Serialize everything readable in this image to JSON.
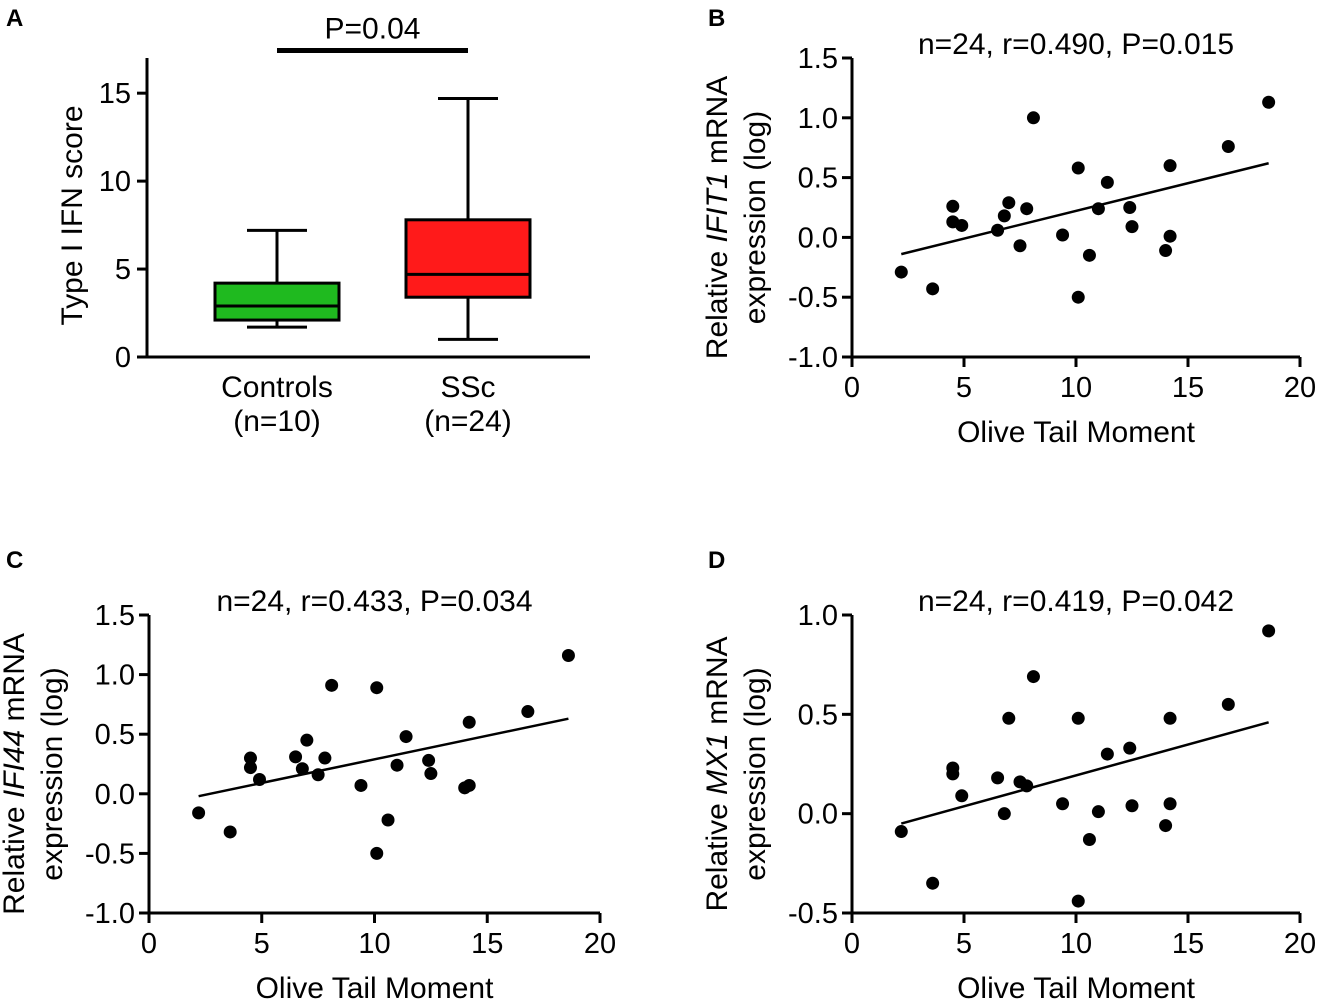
{
  "chart_data": [
    {
      "panel": "A",
      "type": "box",
      "ylabel": "Type I IFN score",
      "ylim": [
        0,
        17
      ],
      "yticks": [
        0,
        5,
        10,
        15
      ],
      "categories": [
        "Controls",
        "SSc"
      ],
      "category_sublabels": [
        "(n=10)",
        "(n=24)"
      ],
      "boxes": [
        {
          "name": "Controls",
          "min": 1.7,
          "q1": 2.1,
          "median": 2.9,
          "q3": 4.2,
          "max": 7.2,
          "color": "#1fba1f"
        },
        {
          "name": "SSc",
          "min": 1.0,
          "q1": 3.4,
          "median": 4.7,
          "q3": 7.8,
          "max": 14.7,
          "color": "#ff1a1a"
        }
      ],
      "significance": {
        "label": "P=0.04",
        "y": 17.2
      }
    },
    {
      "panel": "B",
      "type": "scatter",
      "title": "n=24, r=0.490, P=0.015",
      "xlabel": "Olive Tail Moment",
      "ylabel_prefix": "Relative ",
      "ylabel_gene": "IFIT1",
      "ylabel_suffix": " mRNA",
      "ylabel_line2": "expression (log)",
      "xlim": [
        0,
        20
      ],
      "xticks": [
        0,
        5,
        10,
        15,
        20
      ],
      "ylim": [
        -1.0,
        1.5
      ],
      "yticks": [
        "-1.0",
        "-0.5",
        "0.0",
        "0.5",
        "1.0",
        "1.5"
      ],
      "points": [
        [
          2.2,
          -0.29
        ],
        [
          3.6,
          -0.43
        ],
        [
          4.5,
          0.26
        ],
        [
          4.5,
          0.13
        ],
        [
          4.9,
          0.1
        ],
        [
          6.5,
          0.06
        ],
        [
          6.8,
          0.18
        ],
        [
          7.0,
          0.29
        ],
        [
          7.5,
          -0.07
        ],
        [
          7.8,
          0.24
        ],
        [
          8.1,
          1.0
        ],
        [
          9.4,
          0.02
        ],
        [
          10.1,
          0.58
        ],
        [
          10.1,
          -0.5
        ],
        [
          10.6,
          -0.15
        ],
        [
          11.0,
          0.24
        ],
        [
          11.4,
          0.46
        ],
        [
          12.4,
          0.25
        ],
        [
          12.5,
          0.09
        ],
        [
          14.0,
          -0.11
        ],
        [
          14.2,
          0.6
        ],
        [
          14.2,
          0.01
        ],
        [
          16.8,
          0.76
        ],
        [
          18.6,
          1.13
        ]
      ],
      "fit": {
        "x": [
          2.2,
          18.6
        ],
        "y": [
          -0.14,
          0.62
        ]
      }
    },
    {
      "panel": "C",
      "type": "scatter",
      "title": "n=24, r=0.433, P=0.034",
      "xlabel": "Olive Tail Moment",
      "ylabel_prefix": "Relative ",
      "ylabel_gene": "IFI44",
      "ylabel_suffix": " mRNA",
      "ylabel_line2": "expression (log)",
      "xlim": [
        0,
        20
      ],
      "xticks": [
        0,
        5,
        10,
        15,
        20
      ],
      "ylim": [
        -1.0,
        1.5
      ],
      "yticks": [
        "-1.0",
        "-0.5",
        "0.0",
        "0.5",
        "1.0",
        "1.5"
      ],
      "points": [
        [
          2.2,
          -0.16
        ],
        [
          3.6,
          -0.32
        ],
        [
          4.5,
          0.3
        ],
        [
          4.5,
          0.22
        ],
        [
          4.9,
          0.12
        ],
        [
          6.5,
          0.31
        ],
        [
          6.8,
          0.21
        ],
        [
          7.0,
          0.45
        ],
        [
          7.5,
          0.16
        ],
        [
          7.8,
          0.3
        ],
        [
          8.1,
          0.91
        ],
        [
          9.4,
          0.07
        ],
        [
          10.1,
          0.89
        ],
        [
          10.1,
          -0.5
        ],
        [
          10.6,
          -0.22
        ],
        [
          11.0,
          0.24
        ],
        [
          11.4,
          0.48
        ],
        [
          12.4,
          0.28
        ],
        [
          12.5,
          0.17
        ],
        [
          14.0,
          0.05
        ],
        [
          14.2,
          0.6
        ],
        [
          14.2,
          0.07
        ],
        [
          16.8,
          0.69
        ],
        [
          18.6,
          1.16
        ]
      ],
      "fit": {
        "x": [
          2.2,
          18.6
        ],
        "y": [
          -0.02,
          0.63
        ]
      }
    },
    {
      "panel": "D",
      "type": "scatter",
      "title": "n=24, r=0.419, P=0.042",
      "xlabel": "Olive Tail Moment",
      "ylabel_prefix": "Relative ",
      "ylabel_gene": "MX1",
      "ylabel_suffix": " mRNA",
      "ylabel_line2": "expression (log)",
      "xlim": [
        0,
        20
      ],
      "xticks": [
        0,
        5,
        10,
        15,
        20
      ],
      "ylim": [
        -0.5,
        1.0
      ],
      "yticks": [
        "-0.5",
        "0.0",
        "0.5",
        "1.0"
      ],
      "points": [
        [
          2.2,
          -0.09
        ],
        [
          3.6,
          -0.35
        ],
        [
          4.5,
          0.23
        ],
        [
          4.5,
          0.2
        ],
        [
          4.9,
          0.09
        ],
        [
          6.5,
          0.18
        ],
        [
          6.8,
          0.0
        ],
        [
          7.0,
          0.48
        ],
        [
          7.5,
          0.16
        ],
        [
          7.8,
          0.14
        ],
        [
          8.1,
          0.69
        ],
        [
          9.4,
          0.05
        ],
        [
          10.1,
          0.48
        ],
        [
          10.1,
          -0.44
        ],
        [
          10.6,
          -0.13
        ],
        [
          11.0,
          0.01
        ],
        [
          11.4,
          0.3
        ],
        [
          12.4,
          0.33
        ],
        [
          12.5,
          0.04
        ],
        [
          14.0,
          -0.06
        ],
        [
          14.2,
          0.48
        ],
        [
          14.2,
          0.05
        ],
        [
          16.8,
          0.55
        ],
        [
          18.6,
          0.92
        ]
      ],
      "fit": {
        "x": [
          2.2,
          18.6
        ],
        "y": [
          -0.05,
          0.46
        ]
      }
    }
  ]
}
